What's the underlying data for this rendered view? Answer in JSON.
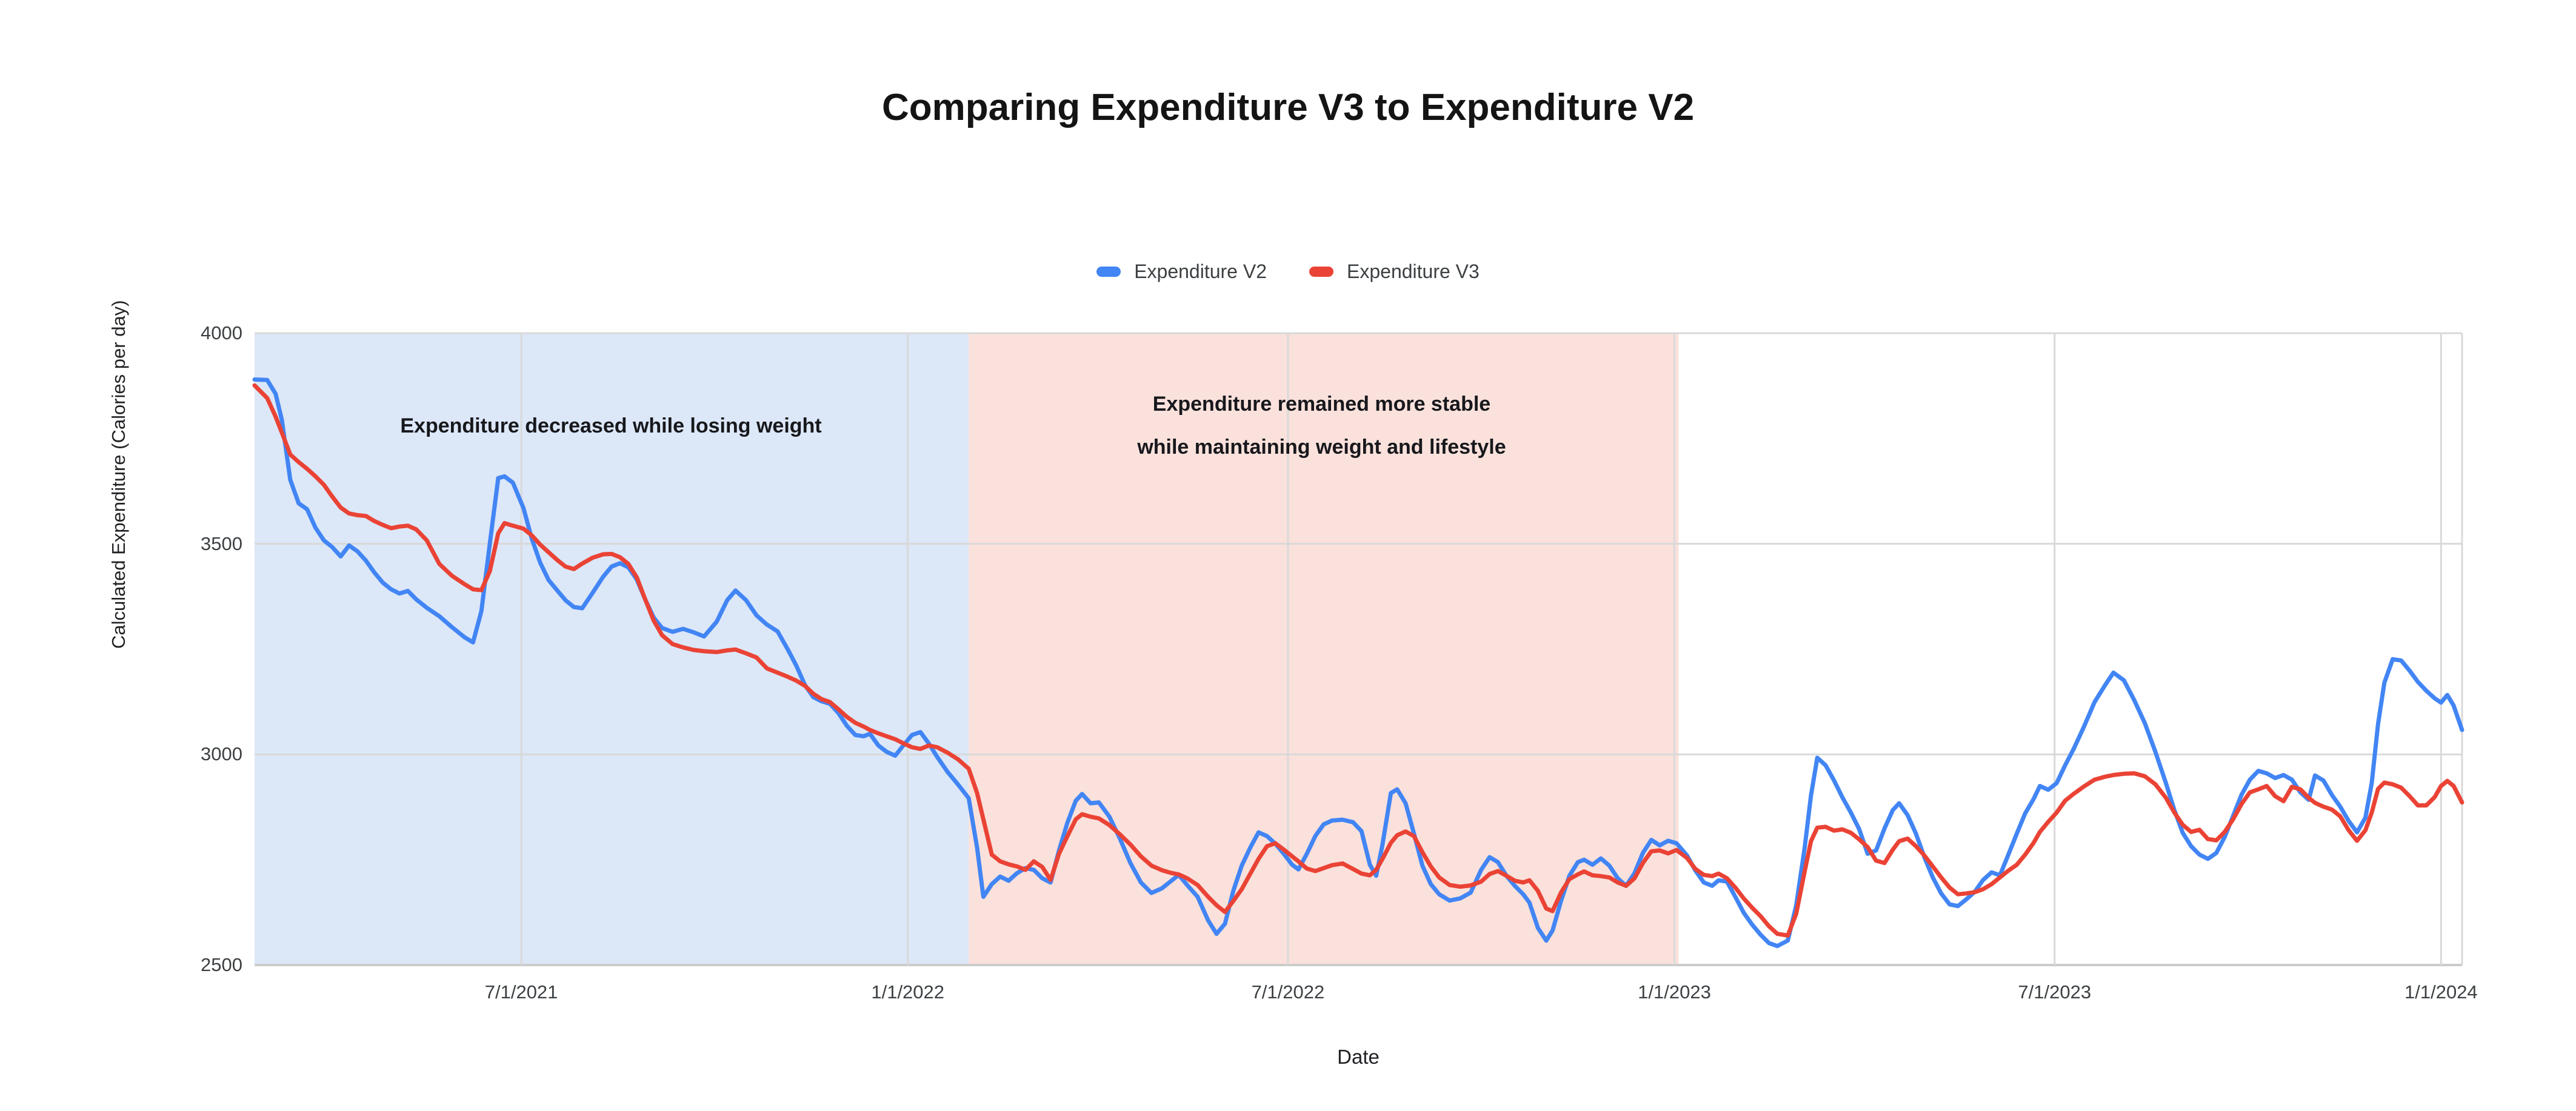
{
  "title": "Comparing Expenditure V3 to Expenditure V2",
  "legend": {
    "items": [
      {
        "label": "Expenditure V2",
        "color": "#4285F4"
      },
      {
        "label": "Expenditure V3",
        "color": "#EA4335"
      }
    ]
  },
  "axes": {
    "x_title": "Date",
    "y_title": "Calculated Expenditure (Calories per day)"
  },
  "annotations": {
    "losing": "Expenditure decreased while losing weight",
    "stable_line1": "Expenditure remained more stable",
    "stable_line2": "while maintaining weight and lifestyle"
  },
  "colors": {
    "series_v2": "#4285F4",
    "series_v3": "#EA4335",
    "region_blue": "#dce7f8",
    "region_pink": "#fae1dc",
    "gridline": "#d9d9d9",
    "axis_line": "#cccccc",
    "tick_text": "#3c4043"
  },
  "chart_data": {
    "type": "line",
    "title": "Comparing Expenditure V3 to Expenditure V2",
    "x_label": "Date",
    "y_label": "Calculated Expenditure (Calories per day)",
    "ylim": [
      2500,
      4000
    ],
    "y_ticks": [
      {
        "value": 2500,
        "label": "2500"
      },
      {
        "value": 3000,
        "label": "3000"
      },
      {
        "value": 3500,
        "label": "3500"
      },
      {
        "value": 4000,
        "label": "4000"
      }
    ],
    "x_domain": [
      "2021-02-24",
      "2024-01-11"
    ],
    "x_ticks": [
      {
        "date": "2021-07-01",
        "label": "7/1/2021"
      },
      {
        "date": "2022-01-01",
        "label": "1/1/2022"
      },
      {
        "date": "2022-07-01",
        "label": "7/1/2022"
      },
      {
        "date": "2023-01-01",
        "label": "1/1/2023"
      },
      {
        "date": "2023-07-01",
        "label": "7/1/2023"
      },
      {
        "date": "2024-01-01",
        "label": "1/1/2024"
      }
    ],
    "grid": true,
    "legend_position": "top-center",
    "regions": [
      {
        "start": "2021-02-24",
        "end": "2022-01-30",
        "color": "#dce7f8",
        "label": "Expenditure decreased while losing weight"
      },
      {
        "start": "2022-01-30",
        "end": "2023-01-03",
        "color": "#fae1dc",
        "label": "Expenditure remained more stable while maintaining weight and lifestyle"
      }
    ],
    "dates": [
      "2021-02-24",
      "2021-03-02",
      "2021-03-06",
      "2021-03-09",
      "2021-03-13",
      "2021-03-17",
      "2021-03-21",
      "2021-03-25",
      "2021-03-29",
      "2021-04-02",
      "2021-04-06",
      "2021-04-10",
      "2021-04-14",
      "2021-04-18",
      "2021-04-22",
      "2021-04-26",
      "2021-04-30",
      "2021-05-04",
      "2021-05-08",
      "2021-05-12",
      "2021-05-17",
      "2021-05-23",
      "2021-05-29",
      "2021-06-04",
      "2021-06-08",
      "2021-06-12",
      "2021-06-16",
      "2021-06-20",
      "2021-06-23",
      "2021-06-27",
      "2021-07-02",
      "2021-07-06",
      "2021-07-10",
      "2021-07-14",
      "2021-07-18",
      "2021-07-22",
      "2021-07-26",
      "2021-07-30",
      "2021-08-04",
      "2021-08-09",
      "2021-08-13",
      "2021-08-17",
      "2021-08-21",
      "2021-08-25",
      "2021-08-29",
      "2021-09-02",
      "2021-09-06",
      "2021-09-11",
      "2021-09-16",
      "2021-09-21",
      "2021-09-26",
      "2021-10-02",
      "2021-10-07",
      "2021-10-11",
      "2021-10-16",
      "2021-10-21",
      "2021-10-26",
      "2021-10-31",
      "2021-11-05",
      "2021-11-09",
      "2021-11-13",
      "2021-11-17",
      "2021-11-21",
      "2021-11-25",
      "2021-11-29",
      "2021-12-03",
      "2021-12-07",
      "2021-12-11",
      "2021-12-14",
      "2021-12-18",
      "2021-12-22",
      "2021-12-26",
      "2021-12-30",
      "2022-01-03",
      "2022-01-07",
      "2022-01-11",
      "2022-01-15",
      "2022-01-20",
      "2022-01-25",
      "2022-01-30",
      "2022-02-03",
      "2022-02-06",
      "2022-02-10",
      "2022-02-14",
      "2022-02-18",
      "2022-02-22",
      "2022-02-26",
      "2022-03-02",
      "2022-03-06",
      "2022-03-10",
      "2022-03-14",
      "2022-03-18",
      "2022-03-22",
      "2022-03-25",
      "2022-03-29",
      "2022-04-02",
      "2022-04-07",
      "2022-04-12",
      "2022-04-17",
      "2022-04-22",
      "2022-04-27",
      "2022-05-02",
      "2022-05-06",
      "2022-05-10",
      "2022-05-14",
      "2022-05-19",
      "2022-05-24",
      "2022-05-28",
      "2022-06-01",
      "2022-06-05",
      "2022-06-09",
      "2022-06-13",
      "2022-06-17",
      "2022-06-21",
      "2022-06-25",
      "2022-06-29",
      "2022-07-03",
      "2022-07-06",
      "2022-07-10",
      "2022-07-14",
      "2022-07-18",
      "2022-07-22",
      "2022-07-27",
      "2022-08-01",
      "2022-08-05",
      "2022-08-09",
      "2022-08-12",
      "2022-08-15",
      "2022-08-19",
      "2022-08-22",
      "2022-08-26",
      "2022-08-30",
      "2022-09-03",
      "2022-09-07",
      "2022-09-11",
      "2022-09-16",
      "2022-09-21",
      "2022-09-26",
      "2022-10-01",
      "2022-10-05",
      "2022-10-09",
      "2022-10-13",
      "2022-10-17",
      "2022-10-21",
      "2022-10-24",
      "2022-10-28",
      "2022-11-01",
      "2022-11-04",
      "2022-11-08",
      "2022-11-12",
      "2022-11-16",
      "2022-11-19",
      "2022-11-23",
      "2022-11-27",
      "2022-12-01",
      "2022-12-05",
      "2022-12-09",
      "2022-12-13",
      "2022-12-17",
      "2022-12-21",
      "2022-12-25",
      "2022-12-29",
      "2023-01-02",
      "2023-01-07",
      "2023-01-11",
      "2023-01-15",
      "2023-01-19",
      "2023-01-22",
      "2023-01-26",
      "2023-01-30",
      "2023-02-03",
      "2023-02-07",
      "2023-02-11",
      "2023-02-15",
      "2023-02-19",
      "2023-02-24",
      "2023-02-28",
      "2023-03-04",
      "2023-03-07",
      "2023-03-10",
      "2023-03-14",
      "2023-03-18",
      "2023-03-22",
      "2023-03-26",
      "2023-03-30",
      "2023-04-03",
      "2023-04-07",
      "2023-04-11",
      "2023-04-15",
      "2023-04-18",
      "2023-04-22",
      "2023-04-26",
      "2023-04-30",
      "2023-05-04",
      "2023-05-08",
      "2023-05-12",
      "2023-05-16",
      "2023-05-20",
      "2023-05-24",
      "2023-05-28",
      "2023-06-01",
      "2023-06-05",
      "2023-06-09",
      "2023-06-13",
      "2023-06-17",
      "2023-06-21",
      "2023-06-24",
      "2023-06-28",
      "2023-07-02",
      "2023-07-06",
      "2023-07-10",
      "2023-07-15",
      "2023-07-20",
      "2023-07-25",
      "2023-07-29",
      "2023-08-03",
      "2023-08-08",
      "2023-08-13",
      "2023-08-18",
      "2023-08-23",
      "2023-08-27",
      "2023-08-31",
      "2023-09-04",
      "2023-09-08",
      "2023-09-12",
      "2023-09-16",
      "2023-09-20",
      "2023-09-24",
      "2023-09-28",
      "2023-10-02",
      "2023-10-06",
      "2023-10-10",
      "2023-10-14",
      "2023-10-18",
      "2023-10-22",
      "2023-10-26",
      "2023-10-30",
      "2023-11-02",
      "2023-11-06",
      "2023-11-10",
      "2023-11-14",
      "2023-11-18",
      "2023-11-22",
      "2023-11-26",
      "2023-11-29",
      "2023-12-02",
      "2023-12-05",
      "2023-12-09",
      "2023-12-13",
      "2023-12-17",
      "2023-12-21",
      "2023-12-25",
      "2023-12-29",
      "2024-01-01",
      "2024-01-04",
      "2024-01-07",
      "2024-01-11"
    ],
    "series": [
      {
        "name": "Expenditure V2",
        "color": "#4285F4",
        "values": [
          3890,
          3889,
          3856,
          3794,
          3652,
          3596,
          3582,
          3538,
          3508,
          3492,
          3470,
          3496,
          3482,
          3460,
          3432,
          3408,
          3392,
          3382,
          3388,
          3368,
          3348,
          3328,
          3302,
          3278,
          3266,
          3340,
          3500,
          3656,
          3660,
          3645,
          3585,
          3512,
          3455,
          3414,
          3390,
          3366,
          3350,
          3347,
          3384,
          3422,
          3446,
          3454,
          3444,
          3415,
          3368,
          3325,
          3300,
          3291,
          3298,
          3290,
          3280,
          3315,
          3366,
          3389,
          3366,
          3330,
          3308,
          3292,
          3248,
          3210,
          3165,
          3136,
          3126,
          3120,
          3098,
          3068,
          3046,
          3043,
          3049,
          3021,
          3006,
          2997,
          3022,
          3046,
          3053,
          3026,
          2994,
          2958,
          2928,
          2896,
          2778,
          2662,
          2692,
          2710,
          2700,
          2718,
          2730,
          2726,
          2706,
          2696,
          2772,
          2838,
          2890,
          2906,
          2884,
          2886,
          2852,
          2800,
          2742,
          2696,
          2671,
          2682,
          2698,
          2714,
          2690,
          2662,
          2606,
          2574,
          2598,
          2676,
          2736,
          2778,
          2815,
          2806,
          2788,
          2764,
          2738,
          2727,
          2764,
          2806,
          2834,
          2843,
          2845,
          2839,
          2818,
          2738,
          2712,
          2786,
          2908,
          2917,
          2884,
          2812,
          2736,
          2692,
          2668,
          2653,
          2658,
          2672,
          2726,
          2756,
          2744,
          2712,
          2688,
          2668,
          2648,
          2588,
          2558,
          2582,
          2652,
          2712,
          2744,
          2750,
          2738,
          2753,
          2736,
          2706,
          2688,
          2718,
          2766,
          2797,
          2784,
          2795,
          2789,
          2760,
          2724,
          2696,
          2688,
          2701,
          2698,
          2662,
          2624,
          2596,
          2572,
          2552,
          2545,
          2558,
          2642,
          2778,
          2902,
          2992,
          2974,
          2938,
          2898,
          2862,
          2822,
          2764,
          2772,
          2824,
          2868,
          2884,
          2856,
          2812,
          2756,
          2708,
          2670,
          2644,
          2640,
          2656,
          2674,
          2702,
          2720,
          2713,
          2762,
          2812,
          2860,
          2894,
          2925,
          2916,
          2932,
          2974,
          3012,
          3066,
          3124,
          3164,
          3194,
          3176,
          3128,
          3074,
          3006,
          2932,
          2868,
          2814,
          2782,
          2762,
          2752,
          2766,
          2804,
          2854,
          2904,
          2940,
          2961,
          2955,
          2944,
          2951,
          2940,
          2910,
          2892,
          2950,
          2938,
          2904,
          2876,
          2842,
          2815,
          2850,
          2932,
          3072,
          3170,
          3226,
          3223,
          3199,
          3172,
          3151,
          3133,
          3123,
          3141,
          3116,
          3058
        ]
      },
      {
        "name": "Expenditure V3",
        "color": "#EA4335",
        "values": [
          3876,
          3846,
          3802,
          3764,
          3712,
          3694,
          3678,
          3660,
          3640,
          3612,
          3586,
          3572,
          3568,
          3566,
          3554,
          3545,
          3537,
          3541,
          3543,
          3534,
          3508,
          3452,
          3424,
          3404,
          3392,
          3390,
          3435,
          3525,
          3549,
          3543,
          3536,
          3520,
          3498,
          3480,
          3462,
          3446,
          3440,
          3453,
          3467,
          3475,
          3476,
          3468,
          3452,
          3420,
          3368,
          3318,
          3283,
          3262,
          3254,
          3248,
          3245,
          3243,
          3247,
          3249,
          3240,
          3230,
          3204,
          3194,
          3184,
          3175,
          3163,
          3144,
          3131,
          3124,
          3107,
          3089,
          3075,
          3066,
          3058,
          3050,
          3043,
          3036,
          3026,
          3017,
          3013,
          3021,
          3017,
          3004,
          2988,
          2966,
          2908,
          2846,
          2762,
          2746,
          2739,
          2734,
          2726,
          2746,
          2733,
          2702,
          2764,
          2806,
          2846,
          2858,
          2852,
          2848,
          2832,
          2810,
          2786,
          2758,
          2736,
          2725,
          2719,
          2715,
          2706,
          2690,
          2662,
          2642,
          2626,
          2652,
          2680,
          2716,
          2752,
          2782,
          2789,
          2774,
          2758,
          2746,
          2729,
          2723,
          2730,
          2737,
          2741,
          2728,
          2717,
          2713,
          2726,
          2752,
          2790,
          2808,
          2817,
          2806,
          2768,
          2734,
          2708,
          2690,
          2686,
          2689,
          2698,
          2716,
          2723,
          2712,
          2700,
          2696,
          2701,
          2676,
          2634,
          2628,
          2672,
          2704,
          2715,
          2722,
          2713,
          2711,
          2708,
          2696,
          2688,
          2706,
          2742,
          2770,
          2772,
          2765,
          2773,
          2754,
          2728,
          2714,
          2711,
          2717,
          2706,
          2684,
          2658,
          2636,
          2616,
          2592,
          2574,
          2570,
          2622,
          2722,
          2794,
          2826,
          2828,
          2819,
          2822,
          2814,
          2798,
          2780,
          2748,
          2742,
          2774,
          2794,
          2800,
          2782,
          2760,
          2734,
          2708,
          2684,
          2668,
          2670,
          2673,
          2680,
          2692,
          2708,
          2724,
          2738,
          2762,
          2790,
          2816,
          2840,
          2862,
          2890,
          2906,
          2924,
          2940,
          2947,
          2951,
          2954,
          2955,
          2948,
          2929,
          2897,
          2862,
          2833,
          2816,
          2821,
          2799,
          2796,
          2816,
          2846,
          2882,
          2910,
          2917,
          2925,
          2901,
          2889,
          2923,
          2917,
          2897,
          2885,
          2876,
          2869,
          2853,
          2820,
          2795,
          2820,
          2862,
          2918,
          2933,
          2929,
          2921,
          2901,
          2879,
          2879,
          2899,
          2925,
          2937,
          2925,
          2886
        ]
      }
    ]
  },
  "plot_geometry_note": "plot area px: left 420, top 550, right 4062, bottom 1593"
}
